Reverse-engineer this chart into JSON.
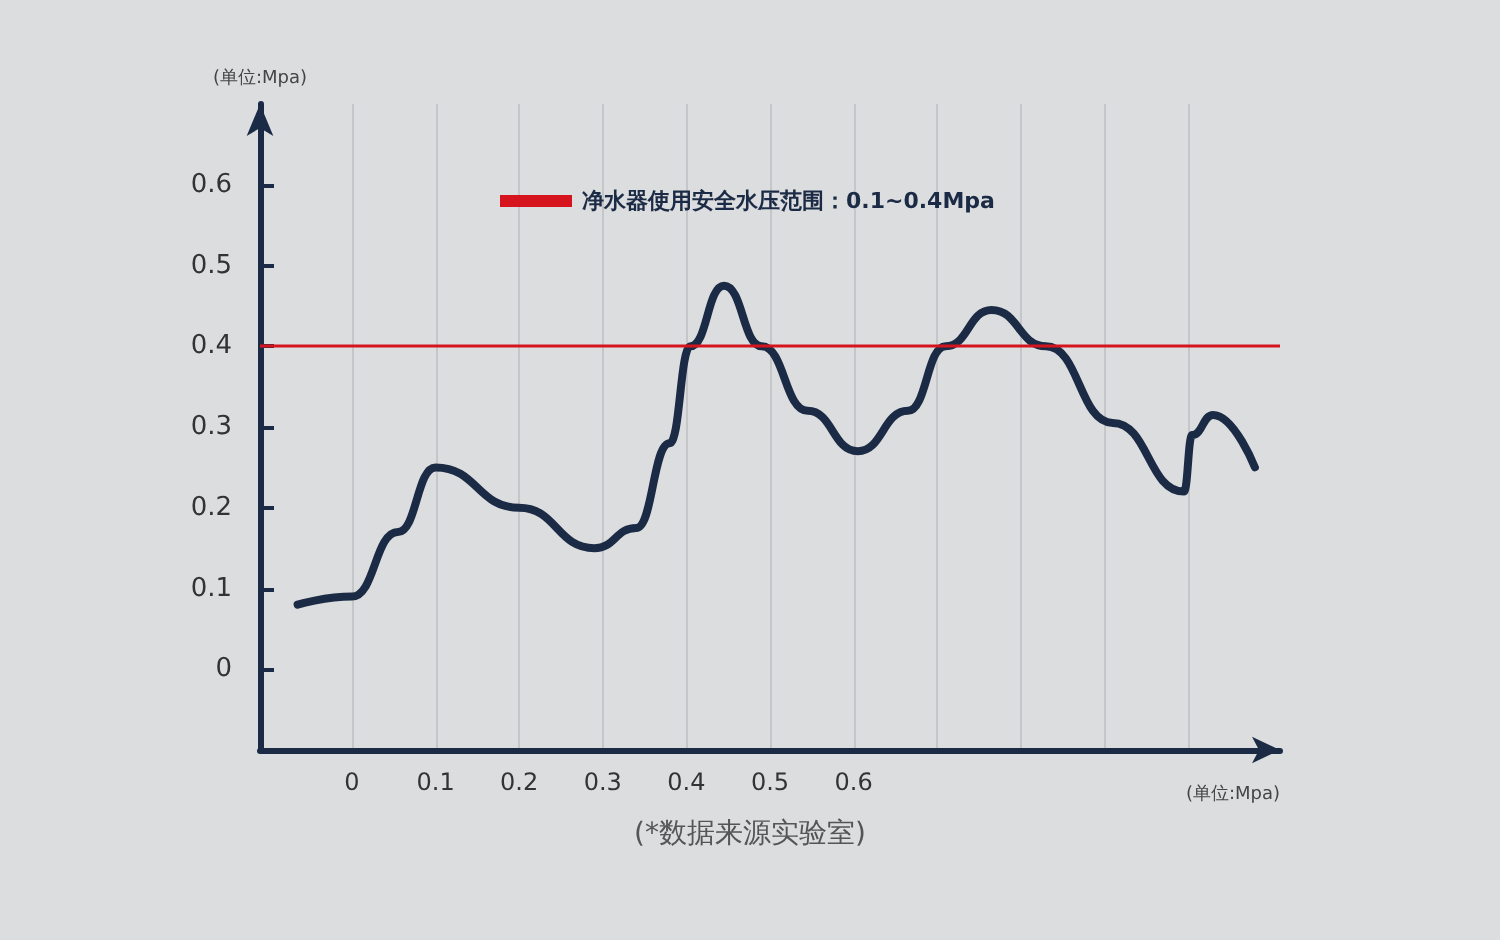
{
  "chart_data": {
    "type": "line",
    "xlabel": "(单位:Mpa)",
    "ylabel": "(单位:Mpa)",
    "annotations": [
      "(*数据来源实验室)"
    ],
    "x": [
      -0.065,
      0,
      0.055,
      0.1,
      0.2,
      0.29,
      0.34,
      0.38,
      0.405,
      0.445,
      0.49,
      0.545,
      0.605,
      0.665,
      0.71,
      0.765,
      0.83,
      0.91,
      0.995,
      1.005,
      1.03,
      1.08
    ],
    "series": [
      {
        "color": "#1c2b45",
        "values": [
          0.08,
          0.09,
          0.17,
          0.25,
          0.2,
          0.15,
          0.175,
          0.28,
          0.4,
          0.475,
          0.4,
          0.32,
          0.27,
          0.32,
          0.4,
          0.445,
          0.4,
          0.305,
          0.22,
          0.29,
          0.315,
          0.25
        ]
      }
    ],
    "xlim": [
      -0.11,
      1.11
    ],
    "xticks": [
      0,
      0.1,
      0.2,
      0.3,
      0.4,
      0.5,
      0.6,
      {
        "value": 0.7,
        "label": null
      },
      {
        "value": 0.8,
        "label": null
      },
      {
        "value": 0.9,
        "label": null
      },
      {
        "value": 1.0,
        "label": null
      }
    ],
    "ylim": [
      -0.1,
      0.7
    ],
    "yticks": [
      0,
      0.1,
      0.2,
      0.3,
      0.4,
      0.5,
      0.6
    ],
    "ref_lines": [
      {
        "axis": "y",
        "value": 0.4,
        "label": "净水器使用安全水压范围：0.1~0.4Mpa",
        "color": "#d6141e"
      }
    ],
    "grid": "x",
    "marker": "none",
    "line_style": "solid"
  }
}
